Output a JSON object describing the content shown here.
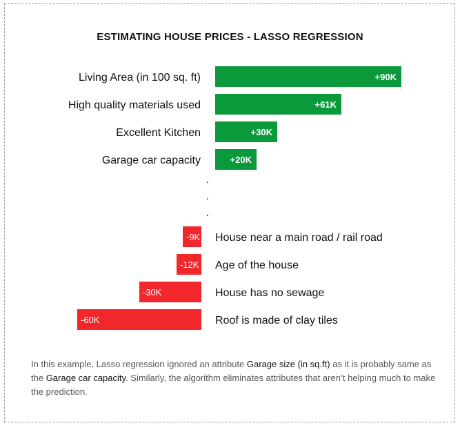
{
  "chart_data": {
    "type": "bar",
    "title": "ESTIMATING HOUSE PRICES - LASSO REGRESSION",
    "orientation": "horizontal",
    "unit": "K",
    "positive_color": "#0a9a3c",
    "negative_color": "#f2272c",
    "positive_features": [
      {
        "label": "Living Area (in 100 sq. ft)",
        "value": 90,
        "value_label": "+90K"
      },
      {
        "label": "High quality materials used",
        "value": 61,
        "value_label": "+61K"
      },
      {
        "label": "Excellent Kitchen",
        "value": 30,
        "value_label": "+30K"
      },
      {
        "label": "Garage car capacity",
        "value": 20,
        "value_label": "+20K"
      }
    ],
    "ellipsis": ".",
    "negative_features": [
      {
        "label": "House near a main road / rail road",
        "value": -9,
        "value_label": "-9K"
      },
      {
        "label": "Age of the house",
        "value": -12,
        "value_label": "-12K"
      },
      {
        "label": "House has no sewage",
        "value": -30,
        "value_label": "-30K"
      },
      {
        "label": "Roof is made of clay tiles",
        "value": -60,
        "value_label": "-60K"
      }
    ]
  },
  "note": {
    "part1": "In this example, Lasso regression ignored an attribute ",
    "hl1": "Garage size (in sq.ft)",
    "part2": " as it is probably same as the ",
    "hl2": "Garage car capacity",
    "part3": ". Similarly, the algorithm eliminates attributes that aren’t helping much to make the prediction."
  }
}
